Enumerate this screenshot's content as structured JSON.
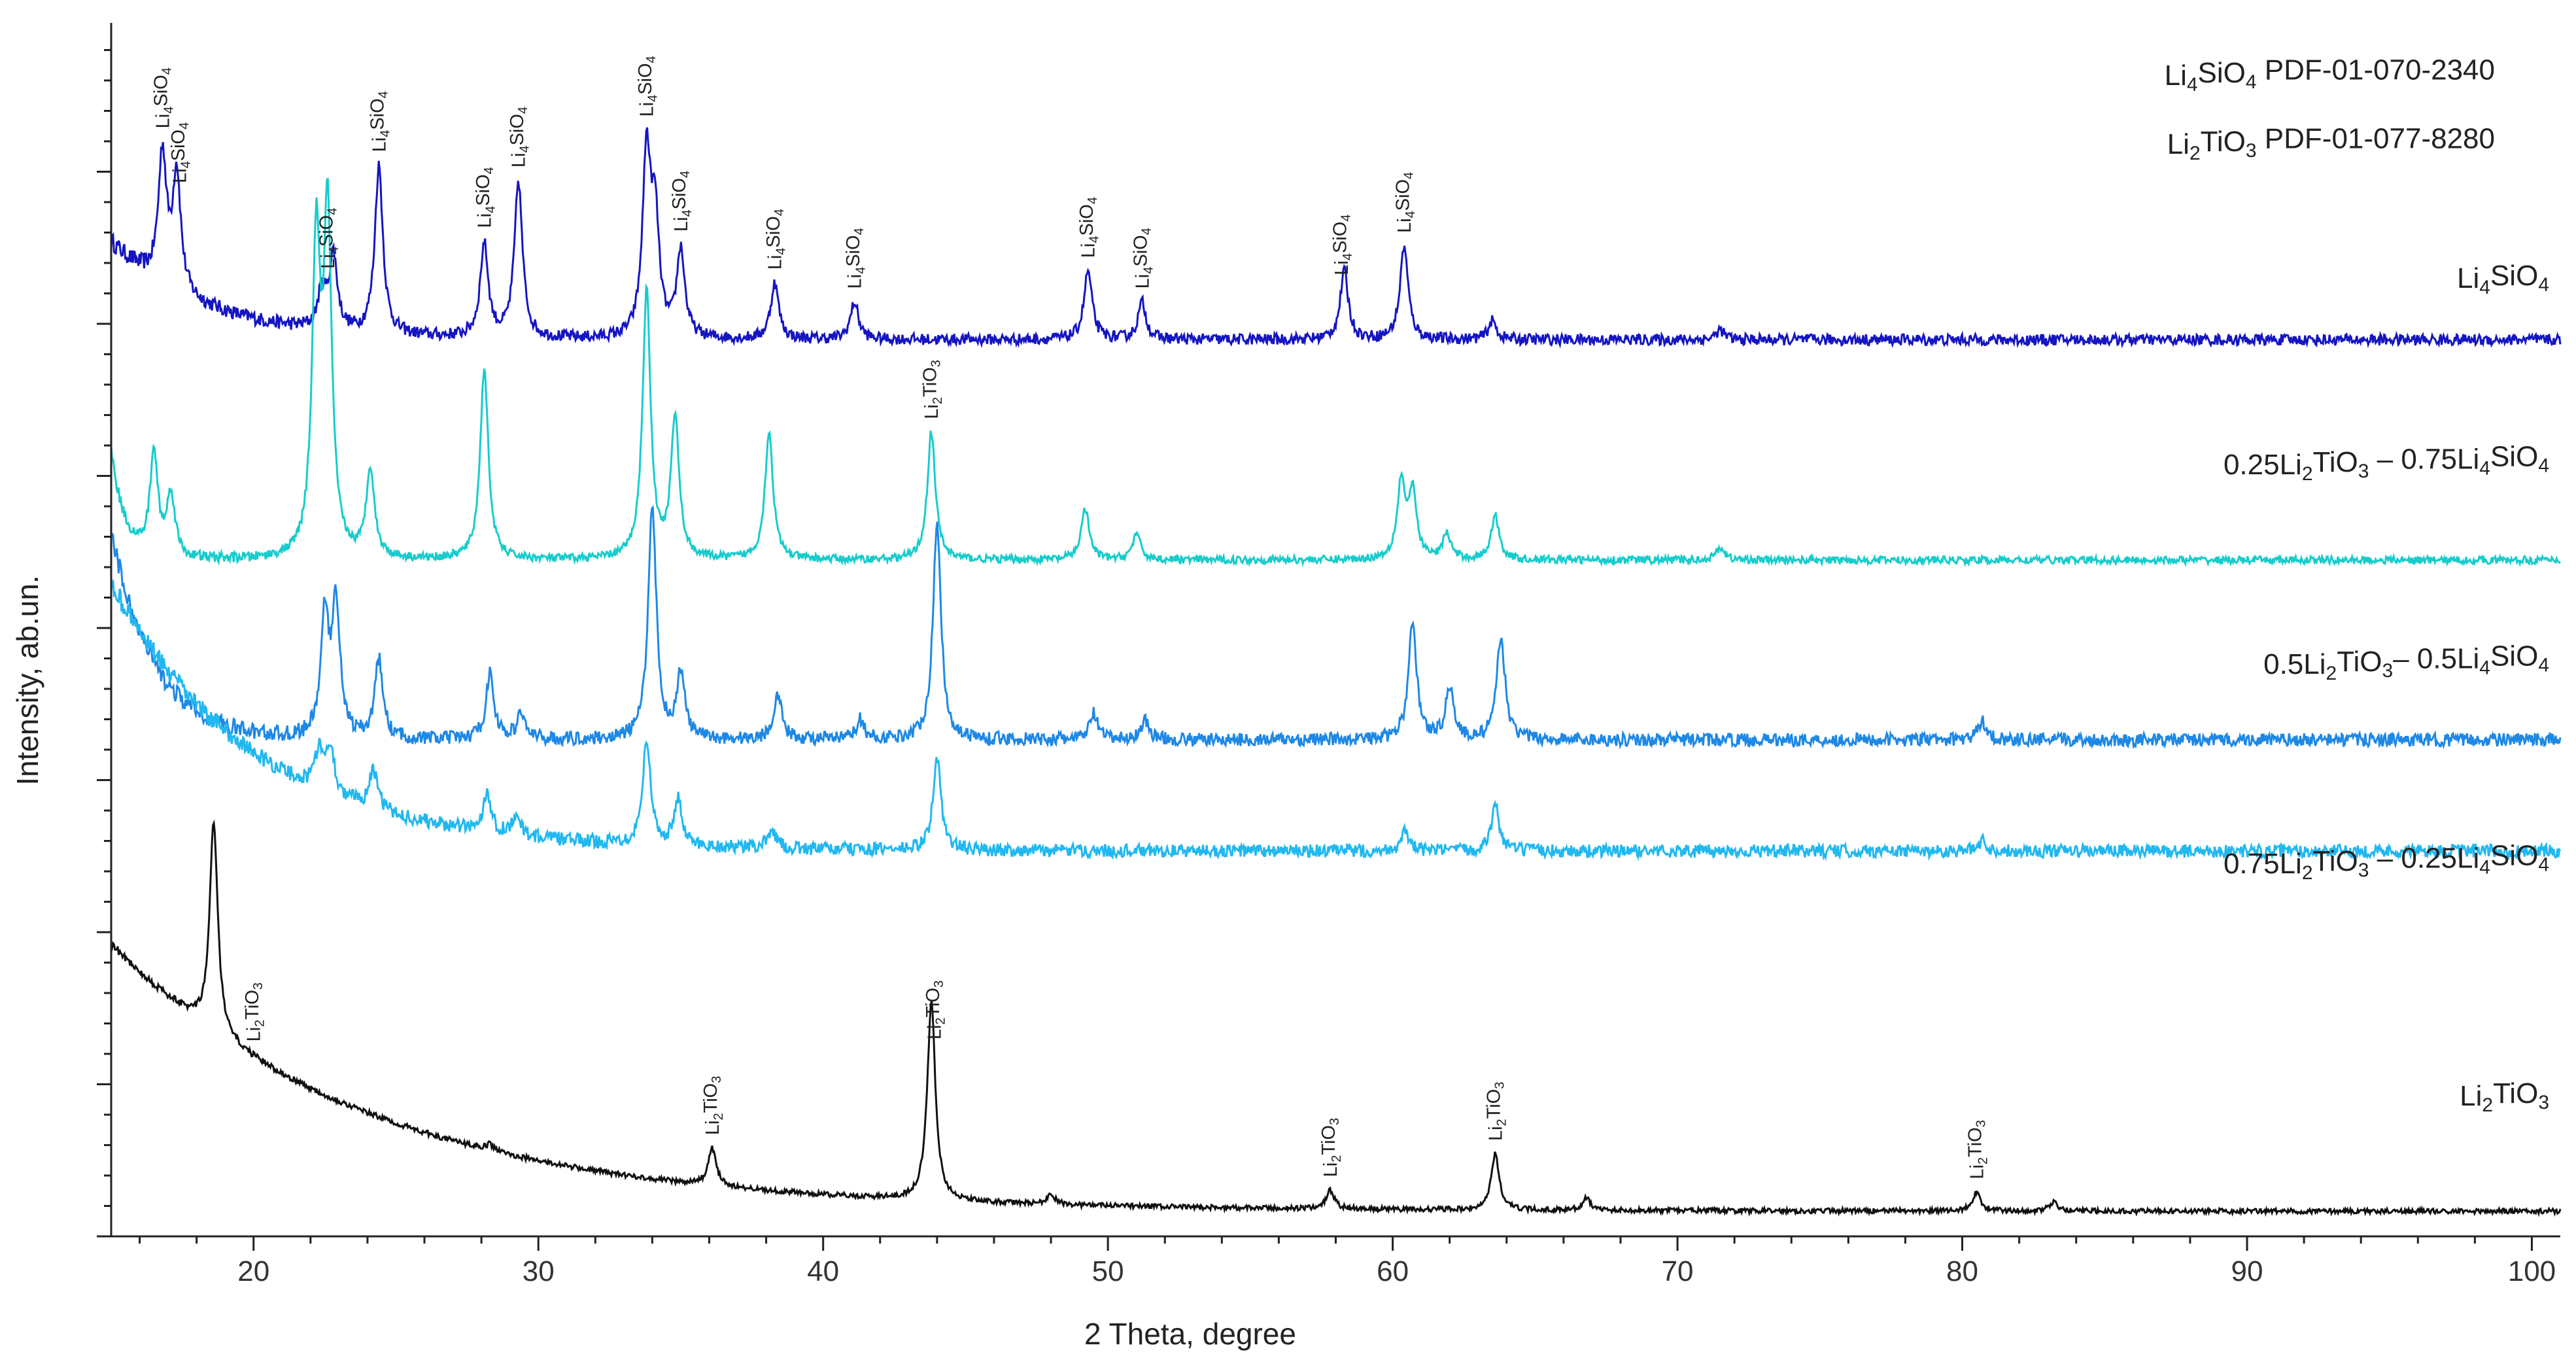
{
  "chart_data": {
    "type": "line",
    "xlabel": "2 Theta, degree",
    "ylabel": "Intensity, ab.un.",
    "xlim": [
      15,
      101
    ],
    "x_ticks": [
      20,
      30,
      40,
      50,
      60,
      70,
      80,
      90,
      100
    ],
    "y_tick_labels": "none",
    "grid": false,
    "references": [
      {
        "parts": [
          [
            "Li",
            ""
          ],
          [
            "4",
            "sub"
          ],
          [
            "SiO",
            ""
          ],
          [
            "4",
            "sub"
          ],
          [
            "  PDF-01-070-2340",
            ""
          ]
        ]
      },
      {
        "parts": [
          [
            "Li",
            ""
          ],
          [
            "2",
            "sub"
          ],
          [
            "TiO",
            ""
          ],
          [
            "3",
            "sub"
          ],
          [
            "  PDF-01-077-8280",
            ""
          ]
        ]
      }
    ],
    "series": [
      {
        "name": "Li4SiO4",
        "label_parts": [
          [
            "Li",
            ""
          ],
          [
            "4",
            "sub"
          ],
          [
            "SiO",
            ""
          ],
          [
            "4",
            "sub"
          ]
        ],
        "color": "#1515c2",
        "baseline_end": 0.24,
        "decay_amp": 0.78,
        "decay_tau": 3.2,
        "noise": 0.045,
        "peaks": [
          [
            16.8,
            1.05
          ],
          [
            17.3,
            0.95
          ],
          [
            22.4,
            0.3
          ],
          [
            22.8,
            0.6
          ],
          [
            24.4,
            1.35
          ],
          [
            28.1,
            0.75
          ],
          [
            29.3,
            1.25
          ],
          [
            33.8,
            1.45
          ],
          [
            34.1,
            0.9
          ],
          [
            35.0,
            0.7
          ],
          [
            38.3,
            0.45
          ],
          [
            41.1,
            0.3
          ],
          [
            49.3,
            0.55
          ],
          [
            51.2,
            0.3
          ],
          [
            58.3,
            0.55
          ],
          [
            60.4,
            0.75
          ],
          [
            63.5,
            0.15
          ],
          [
            71.5,
            0.08
          ]
        ]
      },
      {
        "name": "0.25Li2TiO3 – 0.75Li4SiO4",
        "label_parts": [
          [
            "0.25Li",
            ""
          ],
          [
            "2",
            "sub"
          ],
          [
            "TiO",
            ""
          ],
          [
            "3",
            "sub"
          ],
          [
            " – 0.75Li",
            ""
          ],
          [
            "4",
            "sub"
          ],
          [
            "SiO",
            ""
          ],
          [
            "4",
            "sub"
          ]
        ],
        "color": "#17cccc",
        "baseline_end": 0.25,
        "decay_amp": 0.85,
        "decay_tau": 0.5,
        "noise": 0.03,
        "peaks": [
          [
            16.5,
            0.8
          ],
          [
            17.1,
            0.5
          ],
          [
            22.2,
            2.4
          ],
          [
            22.6,
            2.6
          ],
          [
            24.1,
            0.7
          ],
          [
            28.1,
            1.5
          ],
          [
            33.8,
            2.1
          ],
          [
            34.8,
            1.1
          ],
          [
            38.1,
            1.0
          ],
          [
            43.8,
            1.0
          ],
          [
            49.2,
            0.4
          ],
          [
            51.0,
            0.2
          ],
          [
            60.3,
            0.6
          ],
          [
            60.7,
            0.5
          ],
          [
            61.9,
            0.2
          ],
          [
            63.6,
            0.35
          ],
          [
            71.5,
            0.1
          ]
        ]
      },
      {
        "name": "0.5Li2TiO3– 0.5Li4SiO4",
        "label_parts": [
          [
            "0.5Li",
            ""
          ],
          [
            "2",
            "sub"
          ],
          [
            "TiO",
            ""
          ],
          [
            "3",
            "sub"
          ],
          [
            "– 0.5Li",
            ""
          ],
          [
            "4",
            "sub"
          ],
          [
            "SiO",
            ""
          ],
          [
            "4",
            "sub"
          ]
        ],
        "color": "#1e88e5",
        "baseline_end": 0.22,
        "decay_amp": 1.6,
        "decay_tau": 1.5,
        "noise": 0.05,
        "peaks": [
          [
            22.5,
            0.9
          ],
          [
            22.9,
            1.0
          ],
          [
            24.4,
            0.6
          ],
          [
            28.3,
            0.5
          ],
          [
            29.4,
            0.2
          ],
          [
            34.0,
            1.8
          ],
          [
            35.0,
            0.5
          ],
          [
            38.4,
            0.35
          ],
          [
            41.3,
            0.15
          ],
          [
            44.0,
            1.65
          ],
          [
            49.5,
            0.2
          ],
          [
            51.3,
            0.15
          ],
          [
            60.7,
            0.9
          ],
          [
            62.0,
            0.4
          ],
          [
            63.8,
            0.8
          ],
          [
            80.7,
            0.15
          ]
        ]
      },
      {
        "name": "0.75Li2TiO3 – 0.25Li4SiO4",
        "label_parts": [
          [
            "0.75Li",
            ""
          ],
          [
            "2",
            "sub"
          ],
          [
            "TiO",
            ""
          ],
          [
            "3",
            "sub"
          ],
          [
            " – 0.25Li",
            ""
          ],
          [
            "4",
            "sub"
          ],
          [
            "SiO",
            ""
          ],
          [
            "4",
            "sub"
          ]
        ],
        "color": "#21b8f0",
        "baseline_end": 0.22,
        "decay_amp": 2.05,
        "decay_tau": 5.0,
        "noise": 0.05,
        "peaks": [
          [
            22.3,
            0.3
          ],
          [
            22.7,
            0.35
          ],
          [
            24.2,
            0.3
          ],
          [
            28.2,
            0.3
          ],
          [
            29.2,
            0.15
          ],
          [
            33.8,
            0.8
          ],
          [
            34.9,
            0.35
          ],
          [
            38.2,
            0.15
          ],
          [
            44.0,
            0.7
          ],
          [
            60.4,
            0.15
          ],
          [
            63.6,
            0.35
          ],
          [
            80.7,
            0.08
          ]
        ]
      },
      {
        "name": "Li2TiO3",
        "label_parts": [
          [
            "Li",
            ""
          ],
          [
            "2",
            "sub"
          ],
          [
            "TiO",
            ""
          ],
          [
            "3",
            "sub"
          ]
        ],
        "color": "#111111",
        "baseline_end": 0.15,
        "decay_amp": 2.15,
        "decay_tau": 9.0,
        "noise": 0.02,
        "peaks": [
          [
            18.6,
            1.7
          ],
          [
            28.3,
            0.05
          ],
          [
            36.1,
            0.3
          ],
          [
            43.8,
            1.6
          ],
          [
            48.0,
            0.08
          ],
          [
            57.8,
            0.15
          ],
          [
            63.6,
            0.45
          ],
          [
            66.8,
            0.1
          ],
          [
            80.5,
            0.15
          ],
          [
            83.2,
            0.07
          ]
        ]
      }
    ],
    "annotations": [
      {
        "x": 16.8,
        "text": "Li4SiO4",
        "series": 0
      },
      {
        "x": 17.4,
        "text": "Li4SiO4",
        "series": 0
      },
      {
        "x": 22.6,
        "text": "Li4SiO4",
        "series": 0
      },
      {
        "x": 24.4,
        "text": "Li4SiO4",
        "series": 0
      },
      {
        "x": 28.1,
        "text": "Li4SiO4",
        "series": 0
      },
      {
        "x": 29.3,
        "text": "Li4SiO4",
        "series": 0
      },
      {
        "x": 33.8,
        "text": "Li4SiO4",
        "series": 0
      },
      {
        "x": 35.0,
        "text": "Li4SiO4",
        "series": 0
      },
      {
        "x": 38.3,
        "text": "Li4SiO4",
        "series": 0
      },
      {
        "x": 41.1,
        "text": "Li4SiO4",
        "series": 0
      },
      {
        "x": 49.3,
        "text": "Li4SiO4",
        "series": 0
      },
      {
        "x": 51.2,
        "text": "Li4SiO4",
        "series": 0
      },
      {
        "x": 58.2,
        "text": "Li4SiO4",
        "series": 0
      },
      {
        "x": 60.4,
        "text": "Li4SiO4",
        "series": 0
      },
      {
        "x": 43.8,
        "text": "Li2TiO3",
        "series": 1
      },
      {
        "x": 20.0,
        "text": "Li2TiO3",
        "series": 4
      },
      {
        "x": 36.1,
        "text": "Li2TiO3",
        "series": 4
      },
      {
        "x": 43.9,
        "text": "Li2TiO3",
        "series": 4
      },
      {
        "x": 57.8,
        "text": "Li2TiO3",
        "series": 4
      },
      {
        "x": 63.6,
        "text": "Li2TiO3",
        "series": 4
      },
      {
        "x": 80.5,
        "text": "Li2TiO3",
        "series": 4
      }
    ]
  }
}
